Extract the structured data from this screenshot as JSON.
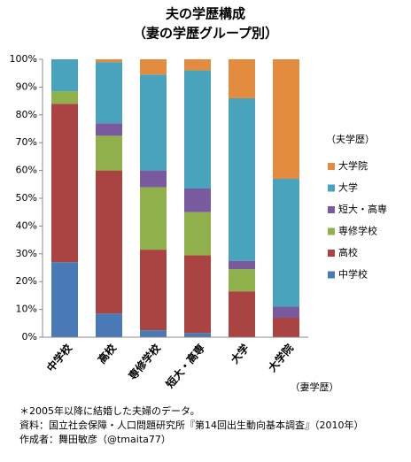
{
  "chart_data": {
    "type": "stacked_bar",
    "title": "夫の学歴構成",
    "subtitle": "（妻の学歴グループ別）",
    "categories": [
      "中学校",
      "高校",
      "専修学校",
      "短大・高専",
      "大学",
      "大学院"
    ],
    "x_label": "（妻学歴）",
    "legend_title": "（夫学歴）",
    "series": [
      {
        "name": "中学校",
        "color": "#4a7ab5",
        "values": [
          27,
          8.5,
          2.5,
          1.5,
          0,
          0
        ]
      },
      {
        "name": "高校",
        "color": "#a94442",
        "values": [
          57,
          51.5,
          29,
          28,
          16.5,
          7
        ]
      },
      {
        "name": "専修学校",
        "color": "#8fb04a",
        "values": [
          4.5,
          12.5,
          22.5,
          15.5,
          8,
          0
        ]
      },
      {
        "name": "短大・高専",
        "color": "#7a5a9e",
        "values": [
          0,
          4.5,
          6,
          8.5,
          3,
          4
        ]
      },
      {
        "name": "大学",
        "color": "#4aa3bd",
        "values": [
          11.5,
          22,
          34.5,
          42.5,
          58.5,
          46
        ]
      },
      {
        "name": "大学院",
        "color": "#e38b3e",
        "values": [
          0,
          1,
          5.5,
          4,
          14,
          43
        ]
      }
    ],
    "ylim": [
      0,
      100
    ],
    "yticks": [
      {
        "value": 0,
        "label": "0%"
      },
      {
        "value": 10,
        "label": "10%"
      },
      {
        "value": 20,
        "label": "20%"
      },
      {
        "value": 30,
        "label": "30%"
      },
      {
        "value": 40,
        "label": "40%"
      },
      {
        "value": 50,
        "label": "50%"
      },
      {
        "value": 60,
        "label": "60%"
      },
      {
        "value": 70,
        "label": "70%"
      },
      {
        "value": 80,
        "label": "80%"
      },
      {
        "value": 90,
        "label": "90%"
      },
      {
        "value": 100,
        "label": "100%"
      }
    ],
    "grid": false,
    "notes": [
      "＊2005年以降に結婚した夫婦のデータ。",
      "資料：国立社会保障・人口問題研究所『第14回出生動向基本調査』（2010年）",
      "作成者：舞田敏彦（@tmaita77）"
    ]
  }
}
